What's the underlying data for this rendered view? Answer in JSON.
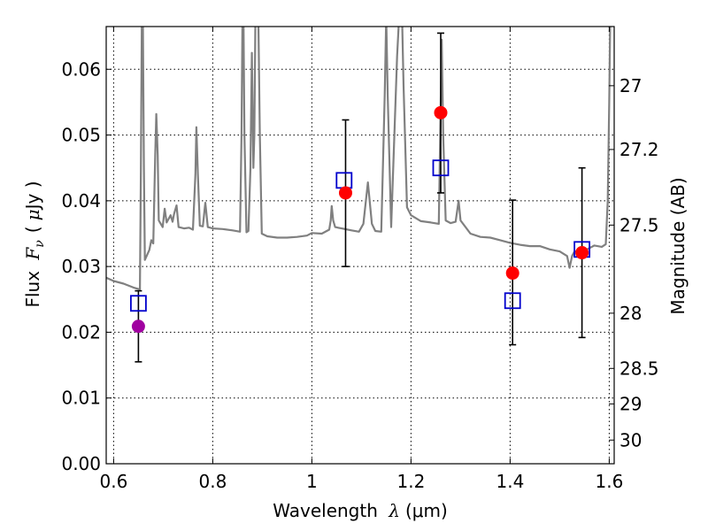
{
  "chart_data": {
    "type": "scatter",
    "xlabel": "Wavelength  λ (μm)",
    "xlabel_prefix": "Wavelength ",
    "xlabel_symbol": "λ",
    "xlabel_unit": "(μm)",
    "ylabel_left": "Flux  F_ν (μJy)",
    "ylabel_left_prefix": "Flux ",
    "ylabel_left_symbol": "F",
    "ylabel_left_sub": "ν",
    "ylabel_left_unit_open": "(",
    "ylabel_left_unit_mu": "μ",
    "ylabel_left_unit_close": "Jy )",
    "ylabel_right": "Magnitude (AB)",
    "xlim": [
      0.585,
      1.61
    ],
    "ylim": [
      0.0,
      0.0665
    ],
    "grid": true,
    "x_ticks": [
      0.6,
      0.8,
      1.0,
      1.2,
      1.4,
      1.6
    ],
    "x_tick_labels": [
      "0.6",
      "0.8",
      "1",
      "1.2",
      "1.4",
      "1.6"
    ],
    "y_ticks": [
      0.0,
      0.01,
      0.02,
      0.03,
      0.04,
      0.05,
      0.06
    ],
    "y_tick_labels": [
      "0.00",
      "0.01",
      "0.02",
      "0.03",
      "0.04",
      "0.05",
      "0.06"
    ],
    "right_ticks": [
      {
        "label": "27",
        "flux": 0.0575
      },
      {
        "label": "27.2",
        "flux": 0.0478
      },
      {
        "label": "27.5",
        "flux": 0.0363
      },
      {
        "label": "28",
        "flux": 0.0229
      },
      {
        "label": "28.5",
        "flux": 0.0145
      },
      {
        "label": "29",
        "flux": 0.0091
      },
      {
        "label": "30",
        "flux": 0.0036
      }
    ],
    "series": [
      {
        "name": "model-spectrum",
        "kind": "line",
        "color": "#808080",
        "points": [
          [
            0.585,
            0.0283
          ],
          [
            0.6,
            0.0278
          ],
          [
            0.62,
            0.0274
          ],
          [
            0.64,
            0.0268
          ],
          [
            0.653,
            0.0265
          ],
          [
            0.655,
            0.045
          ],
          [
            0.657,
            0.068
          ],
          [
            0.659,
            0.068
          ],
          [
            0.661,
            0.045
          ],
          [
            0.663,
            0.031
          ],
          [
            0.672,
            0.0325
          ],
          [
            0.676,
            0.034
          ],
          [
            0.68,
            0.0335
          ],
          [
            0.684,
            0.047
          ],
          [
            0.686,
            0.0532
          ],
          [
            0.689,
            0.047
          ],
          [
            0.691,
            0.037
          ],
          [
            0.699,
            0.036
          ],
          [
            0.703,
            0.0388
          ],
          [
            0.707,
            0.0367
          ],
          [
            0.715,
            0.0378
          ],
          [
            0.719,
            0.0368
          ],
          [
            0.722,
            0.038
          ],
          [
            0.727,
            0.0393
          ],
          [
            0.731,
            0.036
          ],
          [
            0.742,
            0.0358
          ],
          [
            0.752,
            0.0359
          ],
          [
            0.76,
            0.0356
          ],
          [
            0.765,
            0.044
          ],
          [
            0.767,
            0.0512
          ],
          [
            0.77,
            0.044
          ],
          [
            0.774,
            0.0362
          ],
          [
            0.78,
            0.0361
          ],
          [
            0.785,
            0.0397
          ],
          [
            0.79,
            0.036
          ],
          [
            0.8,
            0.0358
          ],
          [
            0.82,
            0.0357
          ],
          [
            0.84,
            0.0355
          ],
          [
            0.855,
            0.0353
          ],
          [
            0.858,
            0.05
          ],
          [
            0.86,
            0.068
          ],
          [
            0.862,
            0.068
          ],
          [
            0.864,
            0.05
          ],
          [
            0.868,
            0.0352
          ],
          [
            0.872,
            0.0354
          ],
          [
            0.876,
            0.045
          ],
          [
            0.879,
            0.0625
          ],
          [
            0.882,
            0.045
          ],
          [
            0.884,
            0.05
          ],
          [
            0.886,
            0.068
          ],
          [
            0.892,
            0.068
          ],
          [
            0.895,
            0.05
          ],
          [
            0.899,
            0.035
          ],
          [
            0.91,
            0.0346
          ],
          [
            0.93,
            0.0344
          ],
          [
            0.95,
            0.0344
          ],
          [
            0.97,
            0.0345
          ],
          [
            0.99,
            0.0347
          ],
          [
            1.0,
            0.0351
          ],
          [
            1.02,
            0.035
          ],
          [
            1.035,
            0.0356
          ],
          [
            1.038,
            0.037
          ],
          [
            1.04,
            0.0392
          ],
          [
            1.043,
            0.037
          ],
          [
            1.047,
            0.036
          ],
          [
            1.06,
            0.0358
          ],
          [
            1.08,
            0.0355
          ],
          [
            1.095,
            0.0353
          ],
          [
            1.104,
            0.0365
          ],
          [
            1.113,
            0.0428
          ],
          [
            1.121,
            0.0365
          ],
          [
            1.128,
            0.0354
          ],
          [
            1.14,
            0.0353
          ],
          [
            1.147,
            0.056
          ],
          [
            1.15,
            0.068
          ],
          [
            1.153,
            0.056
          ],
          [
            1.16,
            0.036
          ],
          [
            1.172,
            0.062
          ],
          [
            1.176,
            0.068
          ],
          [
            1.182,
            0.068
          ],
          [
            1.185,
            0.0575
          ],
          [
            1.192,
            0.039
          ],
          [
            1.2,
            0.0378
          ],
          [
            1.22,
            0.0369
          ],
          [
            1.24,
            0.0367
          ],
          [
            1.256,
            0.0365
          ],
          [
            1.259,
            0.05
          ],
          [
            1.262,
            0.0645
          ],
          [
            1.265,
            0.05
          ],
          [
            1.27,
            0.037
          ],
          [
            1.28,
            0.0366
          ],
          [
            1.29,
            0.0368
          ],
          [
            1.296,
            0.04
          ],
          [
            1.3,
            0.037
          ],
          [
            1.32,
            0.035
          ],
          [
            1.34,
            0.0345
          ],
          [
            1.36,
            0.0344
          ],
          [
            1.38,
            0.034
          ],
          [
            1.4,
            0.0336
          ],
          [
            1.42,
            0.0333
          ],
          [
            1.44,
            0.0331
          ],
          [
            1.46,
            0.0331
          ],
          [
            1.48,
            0.0326
          ],
          [
            1.5,
            0.0323
          ],
          [
            1.515,
            0.0316
          ],
          [
            1.52,
            0.0298
          ],
          [
            1.525,
            0.0316
          ],
          [
            1.53,
            0.0323
          ],
          [
            1.55,
            0.0324
          ],
          [
            1.57,
            0.0332
          ],
          [
            1.585,
            0.033
          ],
          [
            1.593,
            0.0334
          ],
          [
            1.597,
            0.04
          ],
          [
            1.6,
            0.055
          ],
          [
            1.602,
            0.068
          ]
        ]
      },
      {
        "name": "model-photometry",
        "kind": "open-square",
        "color": "#0000cc",
        "points": [
          [
            0.65,
            0.0244
          ],
          [
            1.065,
            0.0431
          ],
          [
            1.26,
            0.045
          ],
          [
            1.405,
            0.0248
          ],
          [
            1.545,
            0.0326
          ]
        ]
      },
      {
        "name": "observed-flux",
        "kind": "filled-circle",
        "color": "#ff0000",
        "points": [
          [
            1.068,
            0.0412
          ],
          [
            1.26,
            0.0534
          ],
          [
            1.405,
            0.029
          ],
          [
            1.545,
            0.0321
          ]
        ],
        "errors": [
          [
            0.03,
            0.0523
          ],
          [
            0.0412,
            0.0655
          ],
          [
            0.0181,
            0.0401
          ],
          [
            0.0192,
            0.045
          ]
        ]
      },
      {
        "name": "observed-flux-blue",
        "kind": "filled-circle",
        "color": "#a000a0",
        "points": [
          [
            0.65,
            0.0209
          ]
        ],
        "errors": [
          [
            0.0155,
            0.0263
          ]
        ]
      }
    ]
  }
}
